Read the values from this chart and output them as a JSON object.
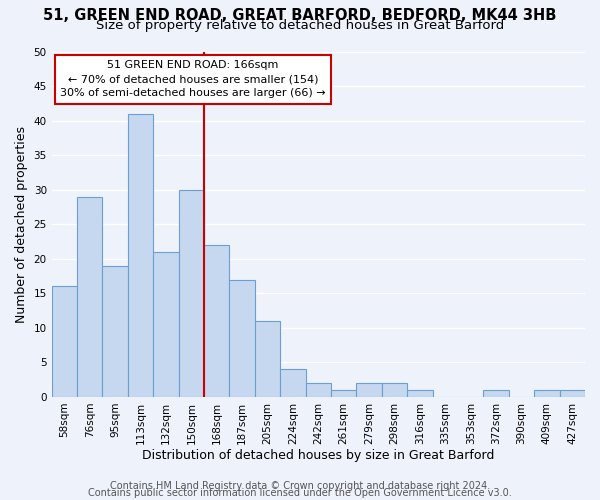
{
  "title1": "51, GREEN END ROAD, GREAT BARFORD, BEDFORD, MK44 3HB",
  "title2": "Size of property relative to detached houses in Great Barford",
  "xlabel": "Distribution of detached houses by size in Great Barford",
  "ylabel": "Number of detached properties",
  "bin_labels": [
    "58sqm",
    "76sqm",
    "95sqm",
    "113sqm",
    "132sqm",
    "150sqm",
    "168sqm",
    "187sqm",
    "205sqm",
    "224sqm",
    "242sqm",
    "261sqm",
    "279sqm",
    "298sqm",
    "316sqm",
    "335sqm",
    "353sqm",
    "372sqm",
    "390sqm",
    "409sqm",
    "427sqm"
  ],
  "values": [
    16,
    29,
    19,
    41,
    21,
    30,
    22,
    17,
    11,
    4,
    2,
    1,
    2,
    2,
    1,
    0,
    0,
    1,
    0,
    1,
    1
  ],
  "bar_color": "#c5d8f0",
  "bar_edge_color": "#6b9fd4",
  "vline_x_index": 5.5,
  "vline_color": "#cc0000",
  "annotation_text": "51 GREEN END ROAD: 166sqm\n← 70% of detached houses are smaller (154)\n30% of semi-detached houses are larger (66) →",
  "annotation_box_color": "white",
  "annotation_box_edge_color": "#cc0000",
  "ylim": [
    0,
    50
  ],
  "yticks": [
    0,
    5,
    10,
    15,
    20,
    25,
    30,
    35,
    40,
    45,
    50
  ],
  "footer1": "Contains HM Land Registry data © Crown copyright and database right 2024.",
  "footer2": "Contains public sector information licensed under the Open Government Licence v3.0.",
  "background_color": "#eef2fa",
  "grid_color": "#ffffff",
  "title_fontsize": 10.5,
  "subtitle_fontsize": 9.5,
  "axis_label_fontsize": 9,
  "tick_fontsize": 7.5,
  "footer_fontsize": 7,
  "annotation_fontsize": 8
}
